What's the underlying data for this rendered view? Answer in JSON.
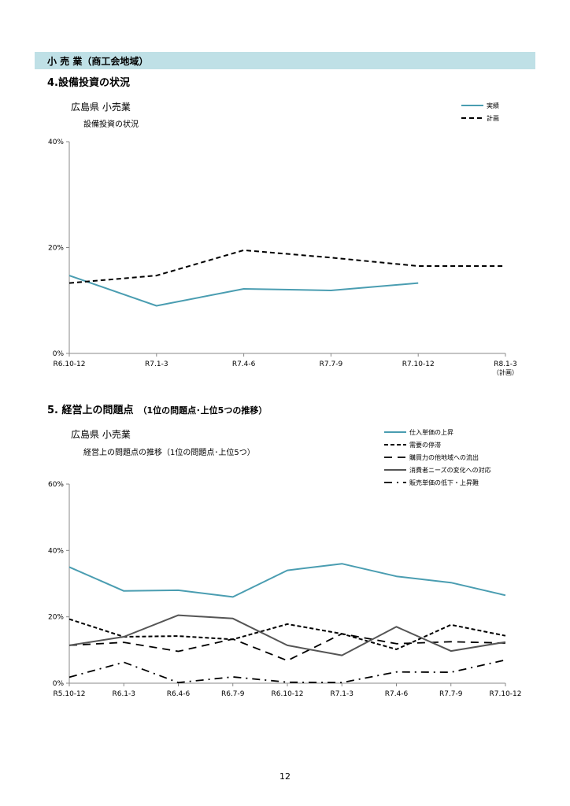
{
  "header": {
    "section_band": "小 売 業（商工会地域）"
  },
  "section4": {
    "title": "4.設備投資の状況",
    "chart_title": "広島県 小売業",
    "chart_subtitle": "設備投資の状況"
  },
  "section5": {
    "title": "5. 経営上の問題点",
    "title_sub": "（1位の問題点･上位5つの推移）",
    "chart_title": "広島県 小売業",
    "chart_subtitle": "経営上の問題点の推移（1位の問題点･上位5つ）"
  },
  "page_number": "12",
  "colors": {
    "teal": "#4a9db1",
    "black": "#000000",
    "gray": "#555555"
  },
  "chart_data": [
    {
      "type": "line",
      "categories": [
        "R6.10-12",
        "R7.1-3",
        "R7.4-6",
        "R7.7-9",
        "R7.10-12",
        "R8.1-3"
      ],
      "category_notes": [
        "",
        "",
        "",
        "",
        "",
        "（計画）"
      ],
      "yticks": [
        "0%",
        "20%",
        "40%"
      ],
      "ylim": [
        0,
        40
      ],
      "grid": false,
      "legend_position": "top-right",
      "series": [
        {
          "name": "実績",
          "style": "solid",
          "color": "#4a9db1",
          "values": [
            14.7,
            9.0,
            12.2,
            11.9,
            13.3,
            null
          ]
        },
        {
          "name": "計画",
          "style": "dashed",
          "color": "#000000",
          "values": [
            13.3,
            14.7,
            19.5,
            18.1,
            16.5,
            16.5
          ]
        }
      ]
    },
    {
      "type": "line",
      "categories": [
        "R5.10-12",
        "R6.1-3",
        "R6.4-6",
        "R6.7-9",
        "R6.10-12",
        "R7.1-3",
        "R7.4-6",
        "R7.7-9",
        "R7.10-12"
      ],
      "yticks": [
        "0%",
        "20%",
        "40%",
        "60%"
      ],
      "ylim": [
        0,
        60
      ],
      "grid": false,
      "legend_position": "top-right",
      "series": [
        {
          "name": "仕入単価の上昇",
          "style": "solid",
          "color": "#4a9db1",
          "values": [
            35.0,
            27.8,
            28.0,
            26.0,
            34.0,
            36.0,
            32.2,
            30.3,
            26.5
          ]
        },
        {
          "name": "需要の停滞",
          "style": "dashed-bold",
          "color": "#000000",
          "values": [
            19.3,
            14.0,
            14.2,
            13.2,
            17.8,
            14.9,
            10.2,
            17.6,
            14.3
          ]
        },
        {
          "name": "購買力の他地域への流出",
          "style": "longdash",
          "color": "#000000",
          "values": [
            11.4,
            12.3,
            9.6,
            13.3,
            6.8,
            14.9,
            11.9,
            12.5,
            12.1
          ]
        },
        {
          "name": "消費者ニーズの変化への対応",
          "style": "solid",
          "color": "#555555",
          "values": [
            11.4,
            14.0,
            20.5,
            19.5,
            11.4,
            8.4,
            17.0,
            9.7,
            12.4
          ]
        },
        {
          "name": "販売単価の低下・上昇難",
          "style": "dashdot",
          "color": "#000000",
          "values": [
            1.8,
            6.3,
            0.2,
            1.9,
            0.3,
            0.2,
            3.4,
            3.3,
            7.0
          ]
        }
      ]
    }
  ]
}
